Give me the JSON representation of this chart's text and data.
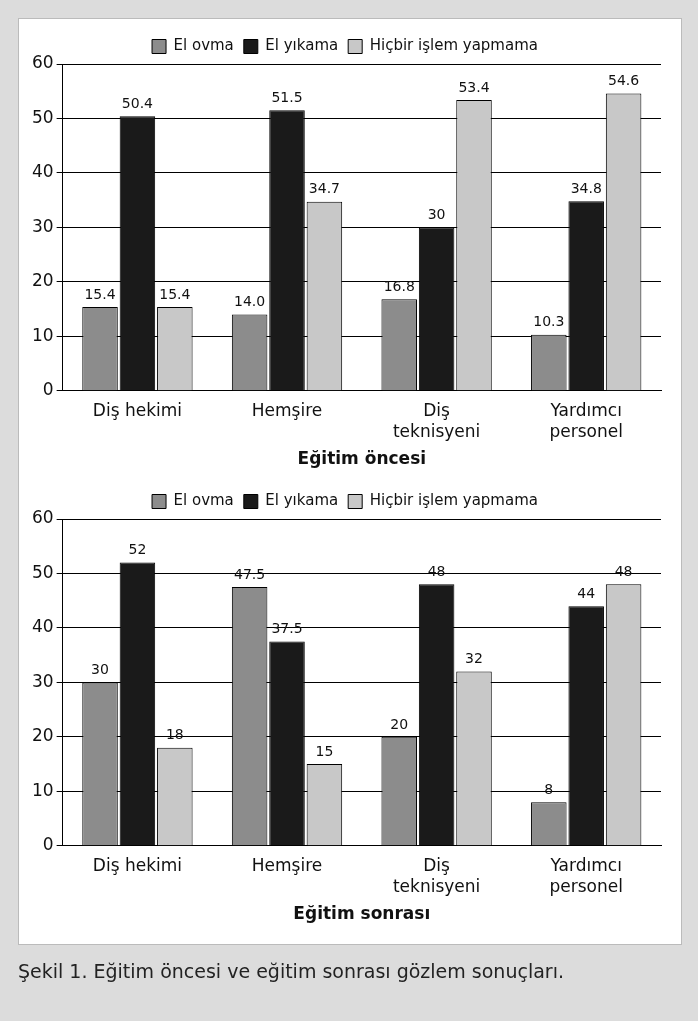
{
  "chart_data": [
    {
      "type": "bar",
      "xlabel": "Eğitim öncesi",
      "categories": [
        "Diş hekimi",
        "Hemşire",
        "Diş teknisyeni",
        "Yardımcı personel"
      ],
      "series": [
        {
          "name": "El ovma",
          "color": "#8c8c8c",
          "values": [
            15.4,
            14.0,
            16.8,
            10.3
          ],
          "value_labels": [
            "15.4",
            "14.0",
            "16.8",
            "10.3"
          ]
        },
        {
          "name": "El yıkama",
          "color": "#1a1a1a",
          "values": [
            50.4,
            51.5,
            30,
            34.8
          ],
          "value_labels": [
            "50.4",
            "51.5",
            "30",
            "34.8"
          ]
        },
        {
          "name": "Hiçbir işlem yapmama",
          "color": "#c8c8c8",
          "values": [
            15.4,
            34.7,
            53.4,
            54.6
          ],
          "value_labels": [
            "15.4",
            "34.7",
            "53.4",
            "54.6"
          ]
        }
      ],
      "ylim": [
        0,
        60
      ],
      "yticks": [
        0,
        10,
        20,
        30,
        40,
        50,
        60
      ],
      "grid": "y",
      "legend": "top"
    },
    {
      "type": "bar",
      "xlabel": "Eğitim sonrası",
      "categories": [
        "Diş hekimi",
        "Hemşire",
        "Diş teknisyeni",
        "Yardımcı personel"
      ],
      "series": [
        {
          "name": "El ovma",
          "color": "#8c8c8c",
          "values": [
            30,
            47.5,
            20,
            8
          ]
        },
        {
          "name": "El yıkama",
          "color": "#1a1a1a",
          "values": [
            52,
            37.5,
            48,
            44
          ]
        },
        {
          "name": "Hiçbir işlem yapmama",
          "color": "#c8c8c8",
          "values": [
            18,
            15,
            32,
            48
          ]
        }
      ],
      "ylim": [
        0,
        60
      ],
      "yticks": [
        0,
        10,
        20,
        30,
        40,
        50,
        60
      ],
      "grid": "y",
      "legend": "top",
      "data_labels": true,
      "annotations": [
        "Şekil 1. Eğitim öncesi ve eğitim sonrası gözlem sonuçları."
      ]
    }
  ]
}
